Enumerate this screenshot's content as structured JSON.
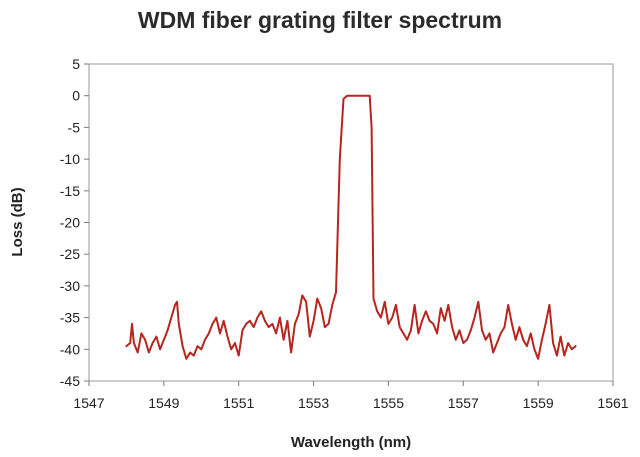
{
  "chart_data": {
    "type": "line",
    "title": "WDM fiber grating filter spectrum",
    "xlabel": "Wavelength (nm)",
    "ylabel": "Loss (dB)",
    "xlim": [
      1547,
      1561
    ],
    "ylim": [
      -45,
      5
    ],
    "xticks": [
      1547,
      1549,
      1551,
      1553,
      1555,
      1557,
      1559,
      1561
    ],
    "yticks": [
      5,
      0,
      -5,
      -10,
      -15,
      -20,
      -25,
      -30,
      -35,
      -40,
      -45
    ],
    "grid": false,
    "legend": "none",
    "line_color": "#b5261e",
    "series": [
      {
        "x": [
          1548.0,
          1548.1,
          1548.15,
          1548.2,
          1548.3,
          1548.4,
          1548.5,
          1548.6,
          1548.7,
          1548.8,
          1548.9,
          1549.0,
          1549.1,
          1549.2,
          1549.3,
          1549.35,
          1549.4,
          1549.5,
          1549.6,
          1549.7,
          1549.8,
          1549.9,
          1550.0,
          1550.1,
          1550.2,
          1550.3,
          1550.4,
          1550.5,
          1550.6,
          1550.7,
          1550.8,
          1550.9,
          1551.0,
          1551.1,
          1551.2,
          1551.3,
          1551.4,
          1551.5,
          1551.6,
          1551.7,
          1551.8,
          1551.9,
          1552.0,
          1552.1,
          1552.2,
          1552.3,
          1552.4,
          1552.5,
          1552.6,
          1552.7,
          1552.8,
          1552.9,
          1553.0,
          1553.1,
          1553.2,
          1553.3,
          1553.4,
          1553.5,
          1553.6,
          1553.7,
          1553.8,
          1553.9,
          1554.0,
          1554.1,
          1554.15,
          1554.2,
          1554.3,
          1554.4,
          1554.5,
          1554.55,
          1554.6,
          1554.7,
          1554.8,
          1554.9,
          1555.0,
          1555.1,
          1555.2,
          1555.3,
          1555.4,
          1555.5,
          1555.6,
          1555.7,
          1555.8,
          1555.9,
          1556.0,
          1556.1,
          1556.2,
          1556.3,
          1556.4,
          1556.5,
          1556.6,
          1556.7,
          1556.8,
          1556.9,
          1557.0,
          1557.1,
          1557.2,
          1557.3,
          1557.4,
          1557.5,
          1557.6,
          1557.7,
          1557.8,
          1557.9,
          1558.0,
          1558.1,
          1558.2,
          1558.3,
          1558.4,
          1558.5,
          1558.6,
          1558.7,
          1558.8,
          1558.9,
          1559.0,
          1559.1,
          1559.2,
          1559.3,
          1559.4,
          1559.5,
          1559.6,
          1559.7,
          1559.8,
          1559.9,
          1560.0
        ],
        "y": [
          -39.5,
          -39.0,
          -36.0,
          -39.0,
          -40.5,
          -37.5,
          -38.5,
          -40.5,
          -39.0,
          -38.0,
          -40.0,
          -38.5,
          -37.0,
          -35.0,
          -33.0,
          -32.5,
          -36.0,
          -39.5,
          -41.5,
          -40.5,
          -41.0,
          -39.5,
          -40.0,
          -38.5,
          -37.5,
          -36.0,
          -35.0,
          -37.5,
          -35.5,
          -38.0,
          -40.0,
          -39.0,
          -41.0,
          -37.0,
          -36.0,
          -35.5,
          -36.5,
          -35.0,
          -34.0,
          -35.5,
          -36.5,
          -36.0,
          -37.5,
          -35.0,
          -38.5,
          -35.5,
          -40.5,
          -36.0,
          -34.5,
          -31.5,
          -32.5,
          -38.0,
          -35.5,
          -32.0,
          -33.5,
          -36.5,
          -36.0,
          -33.0,
          -31.0,
          -10.0,
          -0.5,
          0,
          0,
          0,
          0,
          0,
          0,
          0,
          0,
          -5.0,
          -32.0,
          -34.0,
          -35.0,
          -32.5,
          -36.0,
          -35.0,
          -33.0,
          -36.5,
          -37.5,
          -38.5,
          -37.0,
          -33.0,
          -37.5,
          -35.5,
          -34.0,
          -35.5,
          -36.0,
          -37.5,
          -33.5,
          -35.5,
          -33.0,
          -36.5,
          -38.5,
          -37.0,
          -39.0,
          -38.5,
          -37.0,
          -35.0,
          -32.5,
          -37.0,
          -38.5,
          -37.5,
          -40.5,
          -39.0,
          -37.5,
          -36.5,
          -33.0,
          -36.0,
          -38.5,
          -36.5,
          -38.5,
          -39.5,
          -37.5,
          -40.0,
          -41.5,
          -38.5,
          -36.0,
          -33.0,
          -39.0,
          -41.0,
          -38.0,
          -41.0,
          -39.0,
          -40.0,
          -39.5
        ]
      }
    ]
  }
}
